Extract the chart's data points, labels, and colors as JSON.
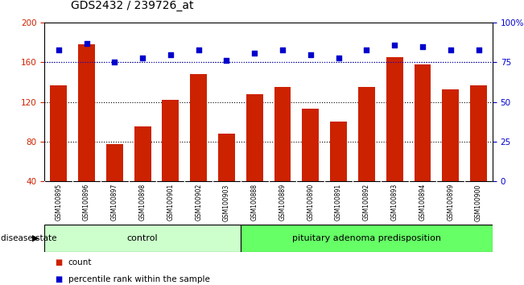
{
  "title": "GDS2432 / 239726_at",
  "samples": [
    "GSM100895",
    "GSM100896",
    "GSM100897",
    "GSM100898",
    "GSM100901",
    "GSM100902",
    "GSM100903",
    "GSM100888",
    "GSM100889",
    "GSM100890",
    "GSM100891",
    "GSM100892",
    "GSM100893",
    "GSM100894",
    "GSM100899",
    "GSM100900"
  ],
  "bar_values": [
    137,
    178,
    77,
    95,
    122,
    148,
    88,
    128,
    135,
    113,
    100,
    135,
    165,
    158,
    133,
    137
  ],
  "percentile_values": [
    83,
    87,
    75,
    78,
    80,
    83,
    76,
    81,
    83,
    80,
    78,
    83,
    86,
    85,
    83,
    83
  ],
  "bar_color": "#cc2200",
  "percentile_color": "#0000cc",
  "ylim_left": [
    40,
    200
  ],
  "ylim_right": [
    0,
    100
  ],
  "yticks_left": [
    40,
    80,
    120,
    160,
    200
  ],
  "yticks_right": [
    0,
    25,
    50,
    75,
    100
  ],
  "ytick_labels_right": [
    "0",
    "25",
    "50",
    "75",
    "100%"
  ],
  "grid_values": [
    80,
    120,
    160
  ],
  "control_count": 7,
  "disease_count": 9,
  "control_label": "control",
  "disease_label": "pituitary adenoma predisposition",
  "disease_state_label": "disease state",
  "legend_bar_label": "count",
  "legend_pct_label": "percentile rank within the sample",
  "bg_color": "#ffffff",
  "plot_bg_color": "#ffffff",
  "tick_area_color": "#c8c8c8",
  "control_box_color": "#ccffcc",
  "disease_box_color": "#66ff66"
}
